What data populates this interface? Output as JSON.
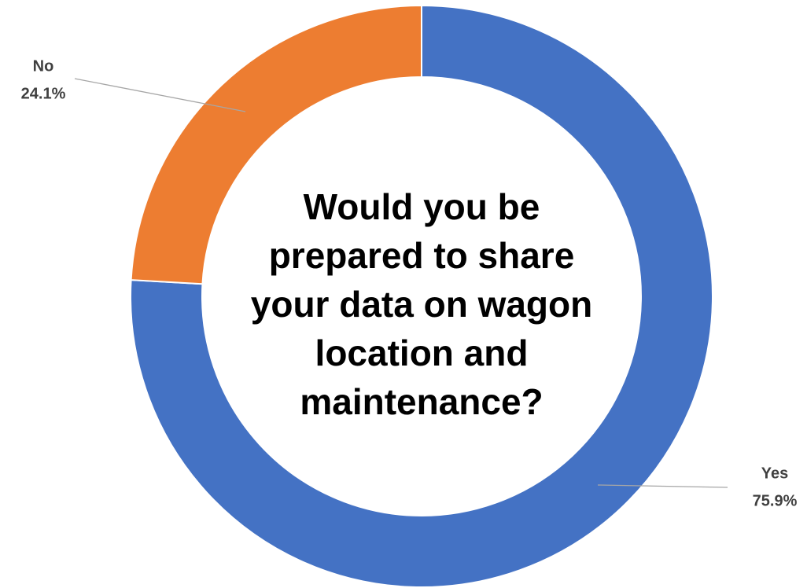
{
  "chart_data": {
    "type": "donut",
    "title": "Would you be prepared to share your data on wagon location and maintenance?",
    "categories": [
      "Yes",
      "No"
    ],
    "values": [
      75.9,
      24.1
    ],
    "value_labels": [
      "75.9%",
      "24.1%"
    ],
    "colors": [
      "#4472c4",
      "#ed7d31"
    ]
  }
}
